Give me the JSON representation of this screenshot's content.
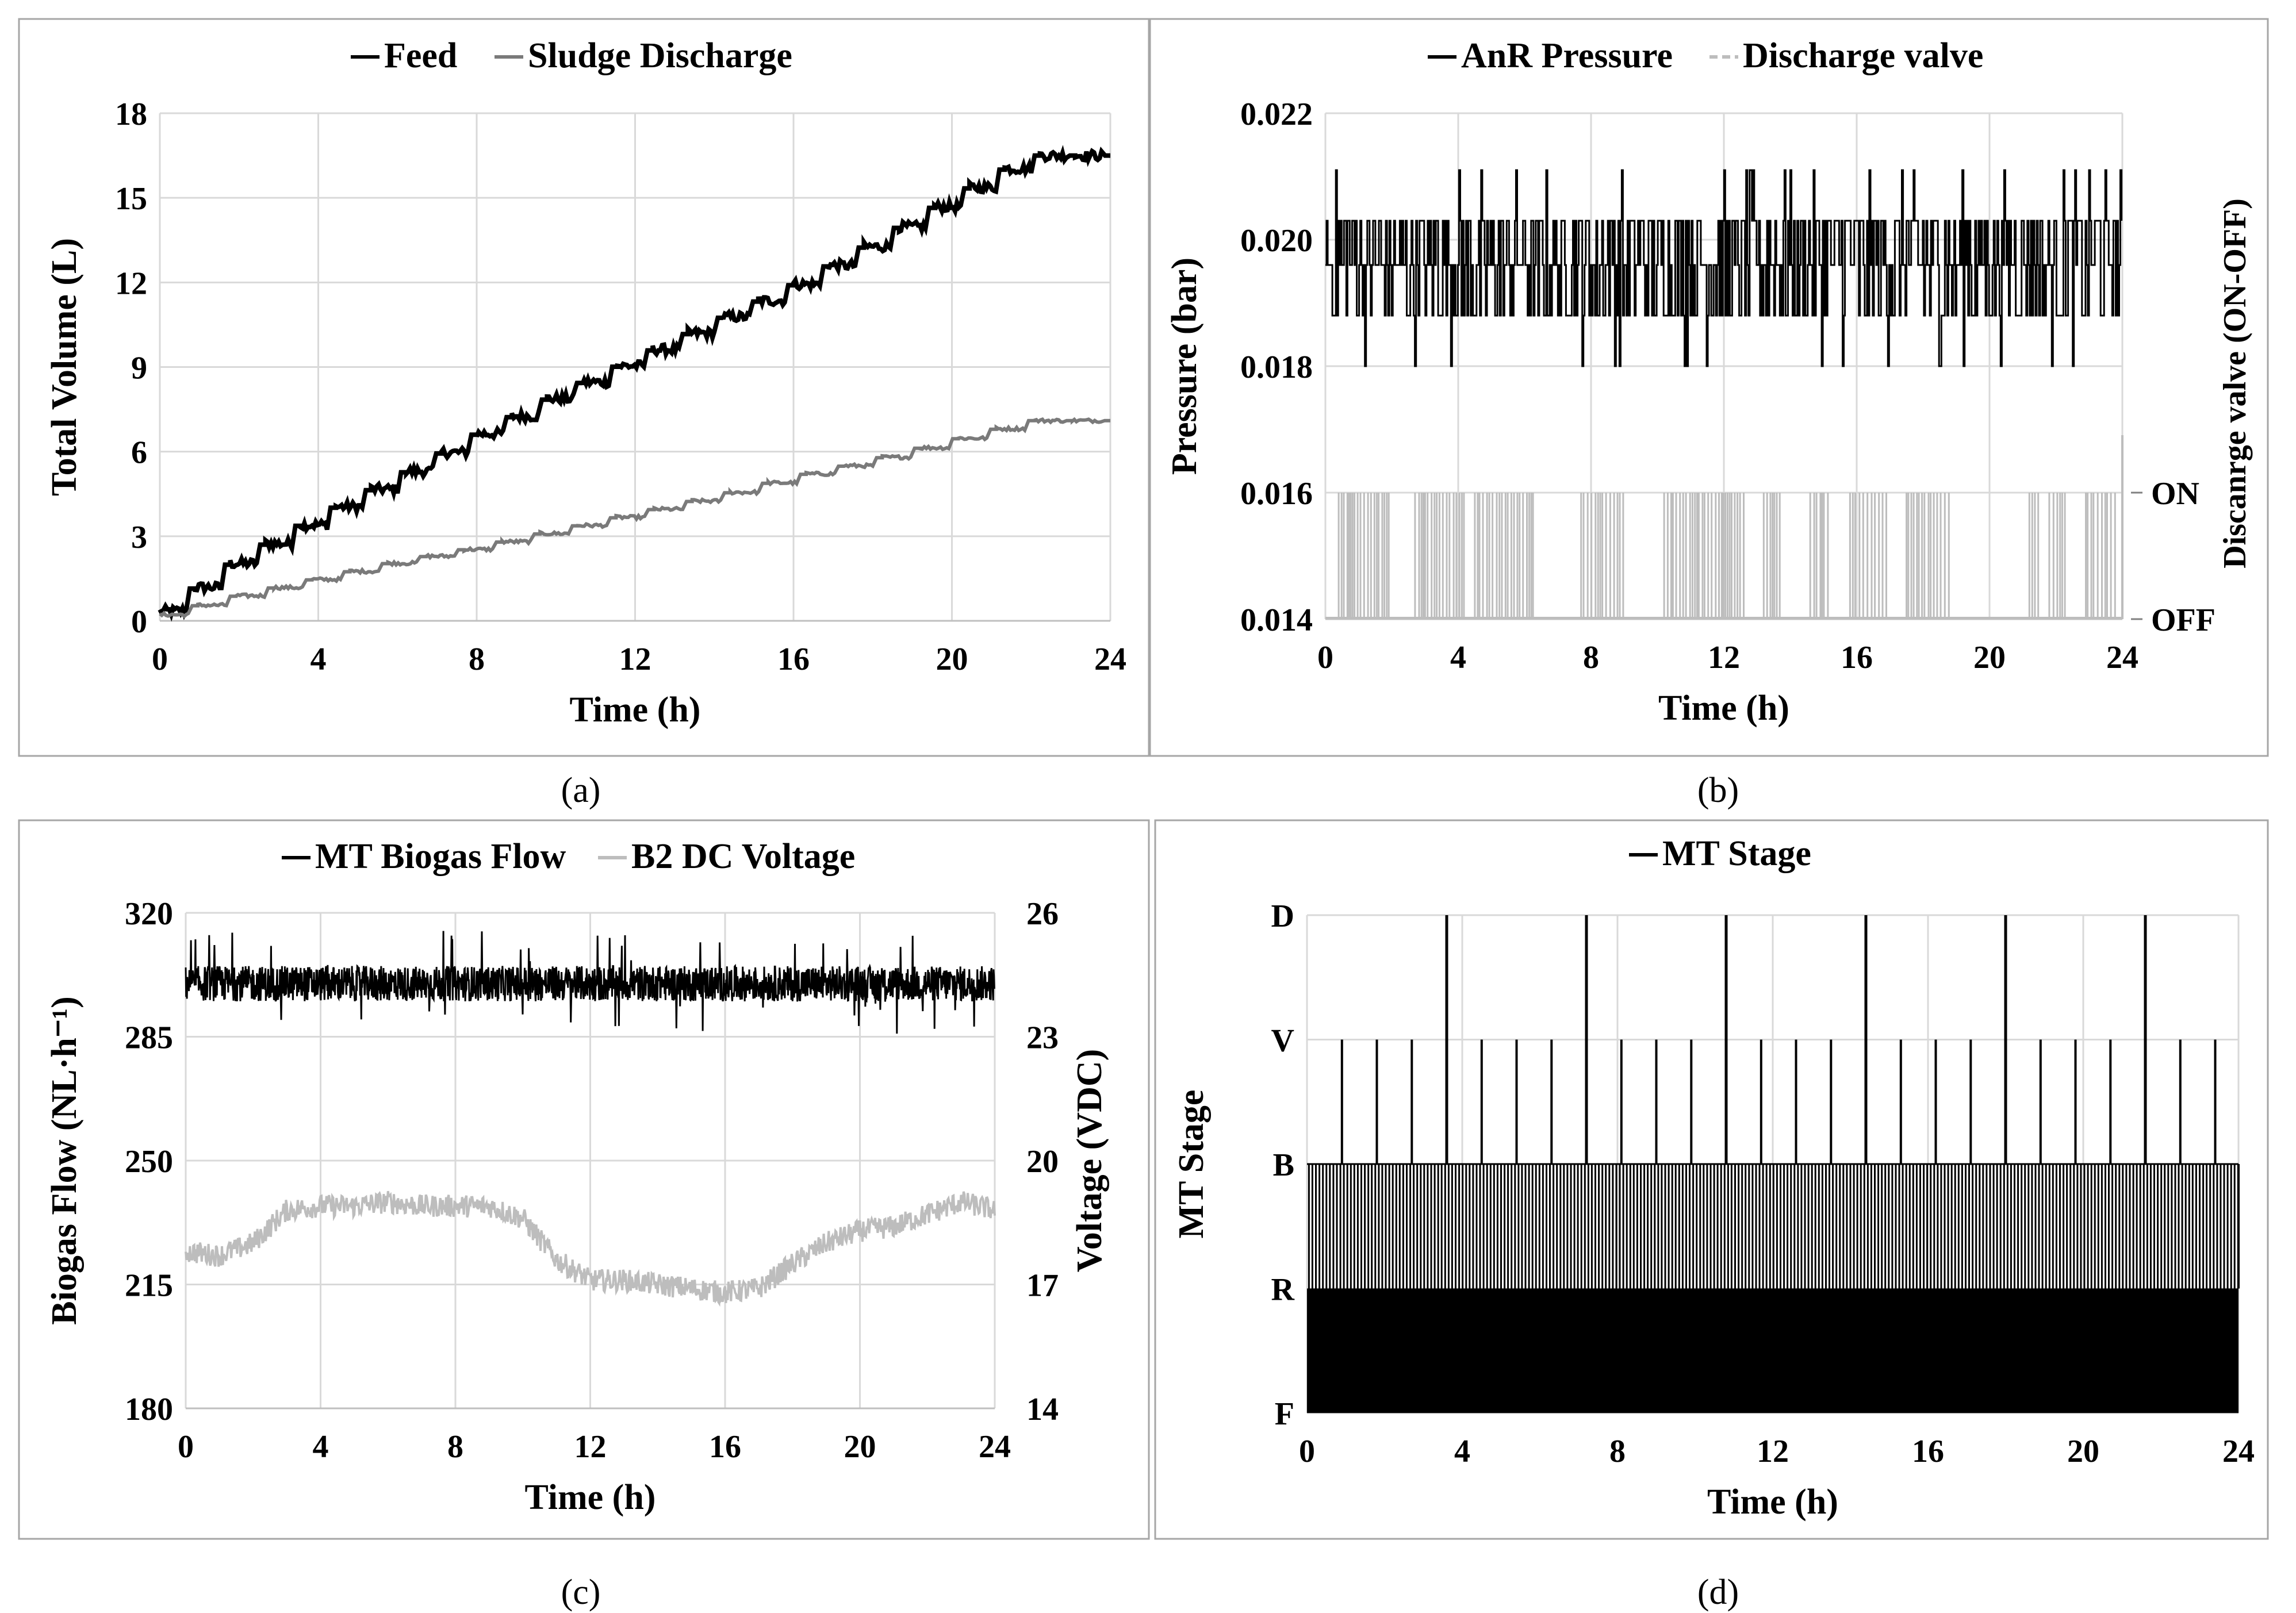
{
  "figure": {
    "captions": [
      "(a)",
      "(b)",
      "(c)",
      "(d)"
    ]
  },
  "colors": {
    "black": "#000000",
    "dark_gray": "#7a7a7a",
    "light_gray": "#bdbdbd",
    "grid": "#d9d9d9",
    "frame": "#a6a6a6"
  },
  "chart_data": [
    {
      "id": "a",
      "type": "line",
      "title": "",
      "legend": [
        "Feed",
        "Sludge Discharge"
      ],
      "legend_position": "top",
      "xlabel": "Time (h)",
      "ylabel": "Total Volume (L)",
      "xlim": [
        0,
        24
      ],
      "ylim": [
        0,
        18
      ],
      "xticks": [
        "0",
        "4",
        "8",
        "12",
        "16",
        "20",
        "24"
      ],
      "yticks": [
        "0",
        "3",
        "6",
        "9",
        "12",
        "15",
        "18"
      ],
      "grid": true,
      "series": [
        {
          "name": "Feed",
          "style": "step",
          "steps": 27,
          "x": [
            0,
            2,
            4,
            6,
            8,
            10,
            12,
            14,
            16,
            18,
            20,
            22,
            24
          ],
          "values": [
            0.3,
            2.2,
            3.7,
            5.1,
            6.6,
            8.0,
            9.3,
            10.6,
            11.9,
            13.4,
            15.0,
            16.5,
            16.5
          ]
        },
        {
          "name": "Sludge Discharge",
          "style": "step",
          "steps": 25,
          "x": [
            0,
            2,
            4,
            6,
            8,
            10,
            12,
            14,
            16,
            18,
            20,
            22,
            24
          ],
          "values": [
            0.2,
            0.9,
            1.5,
            2.1,
            2.6,
            3.2,
            3.8,
            4.4,
            5.1,
            5.7,
            6.4,
            7.1,
            7.1
          ]
        }
      ]
    },
    {
      "id": "b",
      "type": "line",
      "title": "",
      "legend": [
        "AnR Pressure",
        "Discharge valve"
      ],
      "legend_position": "top",
      "xlabel": "Time (h)",
      "ylabel": "Pressure (bar)",
      "y2label": "Discanrge valve (ON-OFF)",
      "xlim": [
        0,
        24
      ],
      "ylim": [
        0.014,
        0.022
      ],
      "xticks": [
        "0",
        "4",
        "8",
        "12",
        "16",
        "20",
        "24"
      ],
      "yticks": [
        "0.014",
        "0.016",
        "0.018",
        "0.020",
        "0.022"
      ],
      "y2ticks": [
        "OFF",
        "ON"
      ],
      "grid": true,
      "series": [
        {
          "name": "AnR Pressure",
          "levels": [
            0.018,
            0.0188,
            0.0196,
            0.0203,
            0.0211
          ],
          "baseline": 0.0196
        },
        {
          "name": "Discharge valve",
          "levels": [
            "OFF",
            "ON"
          ],
          "off_value": 0.014,
          "on_value": 0.016
        }
      ]
    },
    {
      "id": "c",
      "type": "line",
      "title": "",
      "legend": [
        "MT Biogas Flow",
        "B2  DC Voltage"
      ],
      "legend_position": "top",
      "xlabel": "Time (h)",
      "ylabel": "Biogas Flow (NL·h⁻¹)",
      "y2label": "Voltage (VDC)",
      "xlim": [
        0,
        24
      ],
      "ylim": [
        180,
        320
      ],
      "y2lim": [
        14,
        26
      ],
      "xticks": [
        "0",
        "4",
        "8",
        "12",
        "16",
        "20",
        "24"
      ],
      "yticks": [
        "180",
        "215",
        "250",
        "285",
        "320"
      ],
      "y2ticks": [
        "14",
        "17",
        "20",
        "23",
        "26"
      ],
      "grid": true,
      "series": [
        {
          "name": "MT Biogas Flow",
          "axis": "left",
          "mean": 300,
          "range": [
            287,
            316
          ]
        },
        {
          "name": "B2  DC Voltage",
          "axis": "right",
          "x": [
            0,
            1,
            2,
            3,
            4,
            5,
            6,
            7,
            8,
            9,
            10,
            11,
            12,
            13,
            14,
            15,
            16,
            17,
            18,
            19,
            20,
            21,
            22,
            23,
            24
          ],
          "values": [
            17.8,
            17.7,
            18.0,
            18.8,
            18.9,
            18.9,
            19.0,
            18.9,
            18.9,
            18.9,
            18.6,
            17.6,
            17.1,
            17.1,
            17.0,
            16.9,
            16.8,
            16.9,
            17.5,
            18.0,
            18.3,
            18.4,
            18.7,
            19.0,
            18.8
          ]
        }
      ]
    },
    {
      "id": "d",
      "type": "line",
      "title": "",
      "legend": [
        "MT Stage"
      ],
      "legend_position": "top",
      "xlabel": "Time (h)",
      "ylabel": "MT Stage",
      "xlim": [
        0,
        24
      ],
      "yticks": [
        "F",
        "R",
        "B",
        "V",
        "D"
      ],
      "xticks": [
        "0",
        "4",
        "8",
        "12",
        "16",
        "20",
        "24"
      ],
      "grid": true,
      "series": [
        {
          "name": "MT Stage",
          "d_spikes_h": [
            3.6,
            7.2,
            10.8,
            14.4,
            18.0,
            21.6
          ],
          "v_spikes_h": [
            0.9,
            1.8,
            2.7,
            4.5,
            5.4,
            6.3,
            8.1,
            9.0,
            9.9,
            11.7,
            12.6,
            13.5,
            15.3,
            16.2,
            17.1,
            18.9,
            19.8,
            20.7,
            22.5,
            23.4
          ]
        }
      ]
    }
  ]
}
